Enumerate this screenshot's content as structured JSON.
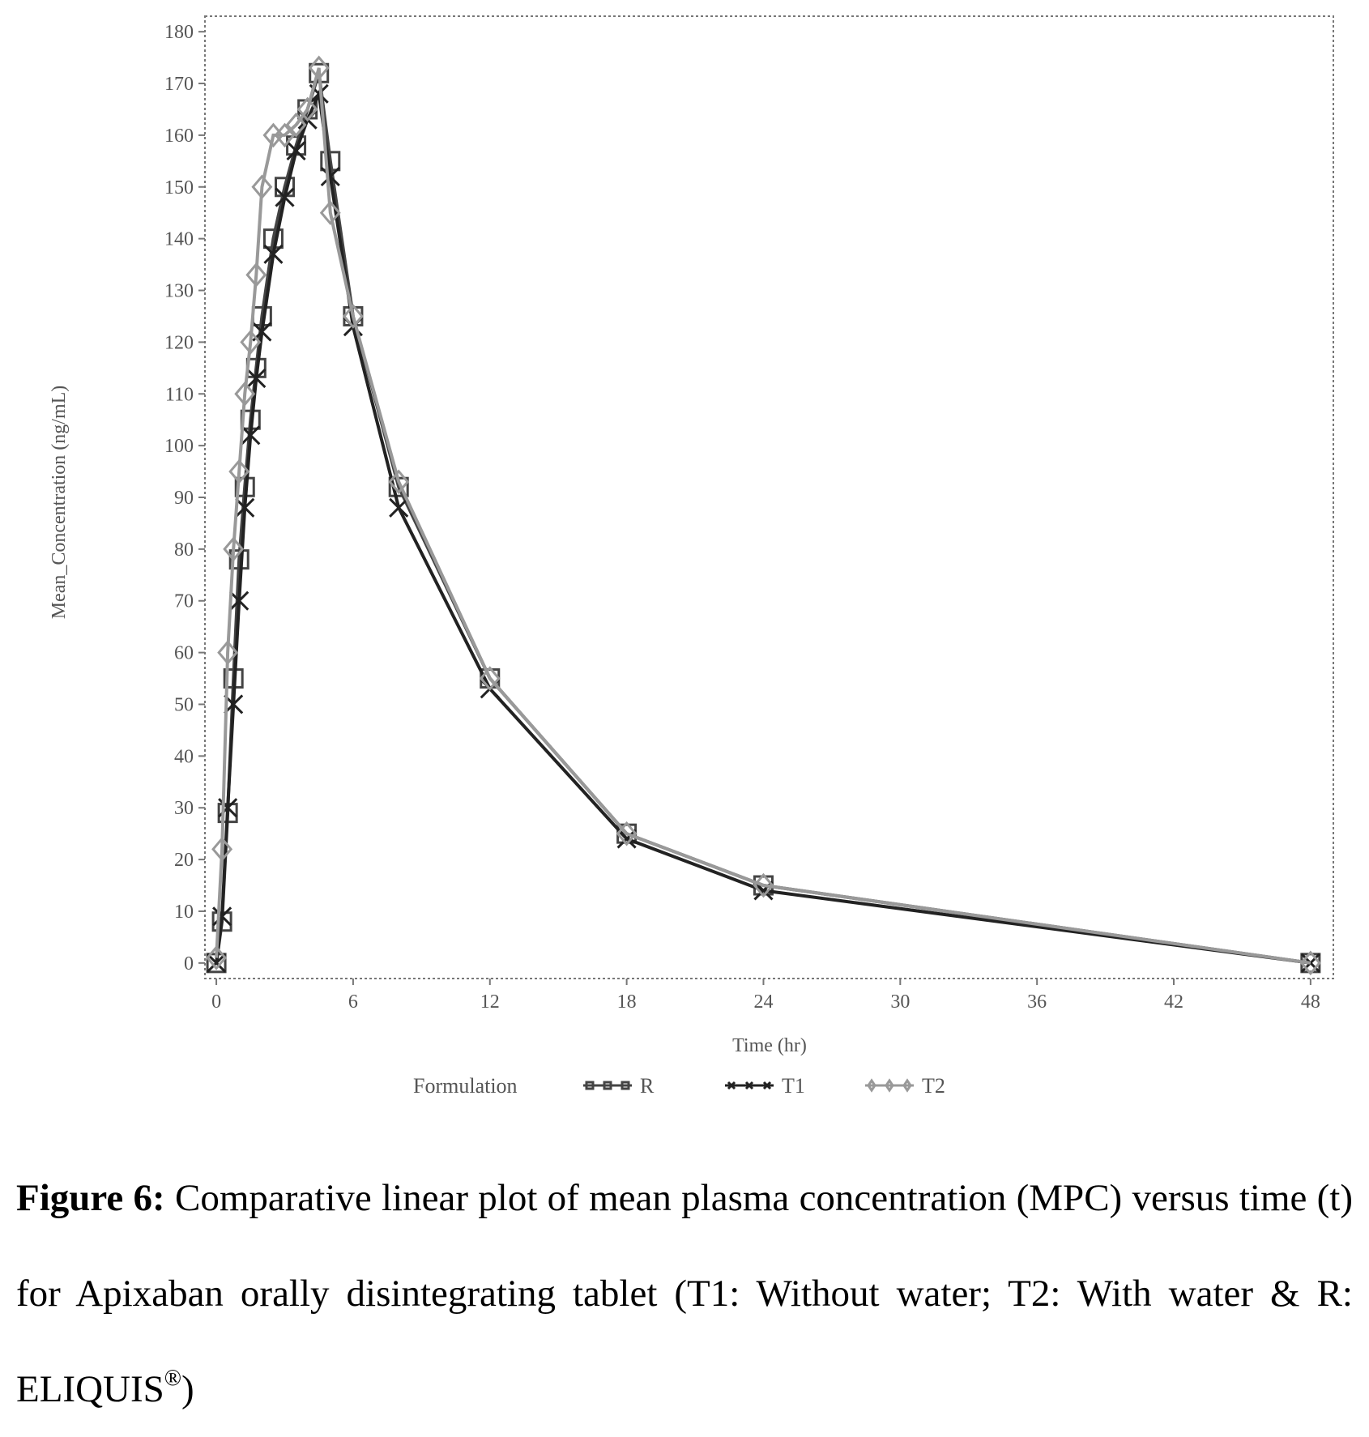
{
  "chart_data": {
    "type": "line",
    "title": "",
    "xlabel": "Time (hr)",
    "ylabel": "Mean_Concentration (ng/mL)",
    "xlim": [
      -0.5,
      49
    ],
    "ylim": [
      -3,
      183
    ],
    "xticks": [
      0,
      6,
      12,
      18,
      24,
      30,
      36,
      42,
      48
    ],
    "yticks": [
      0,
      10,
      20,
      30,
      40,
      50,
      60,
      70,
      80,
      90,
      100,
      110,
      120,
      130,
      140,
      150,
      160,
      170,
      180
    ],
    "grid": false,
    "legend_position": "bottom",
    "legend_title": "Formulation",
    "series": [
      {
        "name": "R",
        "color": "#444444",
        "marker": "square",
        "x": [
          0,
          0.25,
          0.5,
          0.75,
          1,
          1.25,
          1.5,
          1.75,
          2,
          2.5,
          3,
          3.5,
          4,
          4.5,
          5,
          6,
          8,
          12,
          18,
          24,
          48
        ],
        "y": [
          0,
          8,
          29,
          55,
          78,
          92,
          105,
          115,
          125,
          140,
          150,
          158,
          165,
          172,
          155,
          125,
          92,
          55,
          25,
          15,
          0
        ]
      },
      {
        "name": "T1",
        "color": "#222222",
        "marker": "x",
        "x": [
          0,
          0.25,
          0.5,
          0.75,
          1,
          1.25,
          1.5,
          1.75,
          2,
          2.5,
          3,
          3.5,
          4,
          4.5,
          5,
          6,
          8,
          12,
          18,
          24,
          48
        ],
        "y": [
          0,
          9,
          30,
          50,
          70,
          88,
          102,
          113,
          122,
          137,
          148,
          157,
          163,
          168,
          152,
          123,
          88,
          53,
          24,
          14,
          0
        ]
      },
      {
        "name": "T2",
        "color": "#999999",
        "marker": "diamond",
        "x": [
          0,
          0.25,
          0.5,
          0.75,
          1,
          1.25,
          1.5,
          1.75,
          2,
          2.5,
          3,
          3.5,
          4,
          4.5,
          5,
          6,
          8,
          12,
          18,
          24,
          48
        ],
        "y": [
          1,
          22,
          60,
          80,
          95,
          110,
          120,
          133,
          150,
          160,
          160,
          162,
          165,
          173,
          145,
          125,
          93,
          55,
          25,
          15,
          0
        ]
      }
    ]
  },
  "caption": {
    "label": "Figure 6:",
    "text": " Comparative linear plot of mean plasma concentration (MPC) versus time (t) for Apixaban orally disintegrating tablet (T1: Without water; T2: With water & R: ELIQUIS",
    "sup": "®",
    "end": ")"
  }
}
